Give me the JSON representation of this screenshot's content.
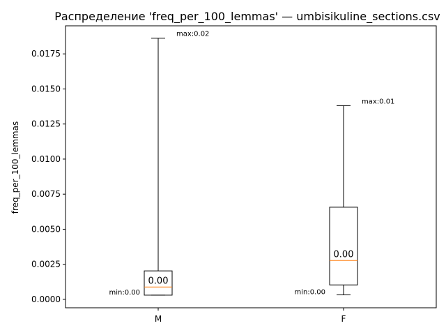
{
  "chart_data": {
    "type": "box",
    "title": "Распределение 'freq_per_100_lemmas' — umbisikuline_sections.csv",
    "xlabel": "",
    "ylabel": "freq_per_100_lemmas",
    "ylim": [
      -0.0006,
      0.0195
    ],
    "yticks": [
      0.0,
      0.0025,
      0.005,
      0.0075,
      0.01,
      0.0125,
      0.015,
      0.0175
    ],
    "ytick_labels": [
      "0.0000",
      "0.0025",
      "0.0050",
      "0.0075",
      "0.0100",
      "0.0125",
      "0.0150",
      "0.0175"
    ],
    "categories": [
      "M",
      "F"
    ],
    "boxes": [
      {
        "category": "M",
        "min": 0.0003,
        "q1": 0.0003,
        "median": 0.00088,
        "q3": 0.00203,
        "max": 0.01862,
        "median_label": "0.00",
        "min_label": "min:0.00",
        "max_label": "max:0.02"
      },
      {
        "category": "F",
        "min": 0.00032,
        "q1": 0.00103,
        "median": 0.00277,
        "q3": 0.00657,
        "max": 0.01381,
        "median_label": "0.00",
        "min_label": "min:0.00",
        "max_label": "max:0.01"
      }
    ],
    "colors": {
      "box": "#000000",
      "median": "#ff7f0e",
      "background": "#ffffff"
    },
    "grid": false,
    "legend": "none"
  }
}
